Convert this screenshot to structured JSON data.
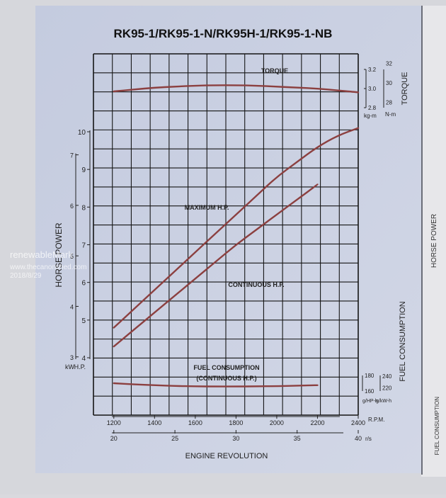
{
  "chart_data": {
    "type": "line",
    "title": "RK95-1/RK95-1-N/RK95H-1/RK95-1-NB",
    "xlabel": "ENGINE REVOLUTION",
    "x_rpm_unit": "R.P.M.",
    "x_rps_unit": "r/s",
    "xlim": [
      1100,
      2400
    ],
    "x_rpm_ticks": [
      "1200",
      "1400",
      "1600",
      "1800",
      "2000",
      "2200",
      "2400"
    ],
    "x_rps_ticks": [
      "20",
      "25",
      "30",
      "35",
      "40"
    ],
    "hp_axis": {
      "label": "HORSE POWER",
      "hp_unit": "H.P.",
      "kw_unit": "kW",
      "ylim": [
        3.5,
        10.5
      ],
      "hp_ticks": [
        "4",
        "5",
        "6",
        "7",
        "8",
        "9",
        "10"
      ],
      "kw_ticks": [
        "3",
        "4",
        "5",
        "6",
        "7"
      ]
    },
    "torque_axis": {
      "label": "TORQUE",
      "kgm_unit": "kg-m",
      "nm_unit": "N-m",
      "kgm_ticks": [
        "2.8",
        "3.0",
        "3.2"
      ],
      "nm_ticks": [
        "28",
        "30",
        "32"
      ]
    },
    "fuel_axis": {
      "label": "FUEL CONSUMPTION",
      "hp_unit": "g/HP-h",
      "kw_unit": "g/kW-h",
      "hp_ticks": [
        "160",
        "180"
      ],
      "kw_ticks": [
        "220",
        "240"
      ]
    },
    "series": [
      {
        "name": "MAXIMUM H.P.",
        "axis": "hp",
        "x": [
          1200,
          1300,
          1400,
          1500,
          1600,
          1700,
          1800,
          1900,
          2000,
          2100,
          2200,
          2300,
          2400
        ],
        "y": [
          4.8,
          5.3,
          5.8,
          6.3,
          6.8,
          7.3,
          7.8,
          8.3,
          8.8,
          9.2,
          9.6,
          9.9,
          10.1
        ]
      },
      {
        "name": "CONTINUOUS H.P.",
        "axis": "hp",
        "x": [
          1200,
          1300,
          1400,
          1500,
          1600,
          1700,
          1800,
          1900,
          2000,
          2100,
          2200
        ],
        "y": [
          4.3,
          4.75,
          5.2,
          5.65,
          6.1,
          6.55,
          7.0,
          7.4,
          7.8,
          8.2,
          8.6
        ]
      },
      {
        "name": "TORQUE",
        "axis": "torque",
        "x": [
          1200,
          1300,
          1400,
          1500,
          1600,
          1700,
          1800,
          1900,
          2000,
          2100,
          2200,
          2300,
          2400
        ],
        "y": [
          2.97,
          2.99,
          3.01,
          3.02,
          3.03,
          3.035,
          3.035,
          3.03,
          3.02,
          3.01,
          3.0,
          2.98,
          2.96
        ]
      },
      {
        "name": "FUEL CONSUMPTION (CONTINUOUS H.P.)",
        "axis": "fuel",
        "x": [
          1200,
          1300,
          1400,
          1500,
          1600,
          1700,
          1800,
          1900,
          2000,
          2100,
          2200
        ],
        "y": [
          170,
          168.5,
          167.5,
          166.5,
          166,
          165.8,
          165.8,
          166,
          166.3,
          166.8,
          167.5
        ]
      }
    ],
    "labels": {
      "max_hp": "MAXIMUM H.P.",
      "cont_hp": "CONTINUOUS H.P.",
      "torque": "TORQUE",
      "fuel1": "FUEL CONSUMPTION",
      "fuel2": "(CONTINUOUS H.P.)"
    },
    "grid": true,
    "colors": {
      "paper": "#c9cfe1",
      "grid": "#151515",
      "curve": "#8c4040"
    }
  },
  "side_page": {
    "label": "HORSE POWER",
    "fuel_label": "FUEL CONSUMPTION"
  },
  "watermark": {
    "line1": "renewableMark",
    "line2": "www.thecanonshed.com",
    "line3": "2018/8/29"
  }
}
